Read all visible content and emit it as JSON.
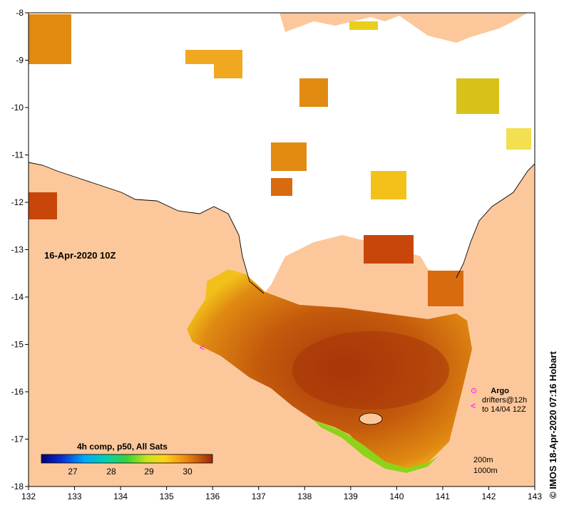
{
  "map": {
    "date_label": "16-Apr-2020 10Z",
    "x_ticks": [
      "132",
      "133",
      "134",
      "135",
      "136",
      "137",
      "138",
      "139",
      "140",
      "141",
      "142",
      "143"
    ],
    "y_ticks": [
      "-8",
      "-9",
      "-10",
      "-11",
      "-12",
      "-13",
      "-14",
      "-15",
      "-16",
      "-17",
      "-18"
    ],
    "colorbar": {
      "title": "4h comp, p50, All Sats",
      "ticks": [
        "27",
        "28",
        "29",
        "30"
      ]
    },
    "legend": {
      "argo_label": "Argo",
      "drifters_line1": "drifters@12h",
      "drifters_line2": "to 14/04 12Z",
      "argo_symbol": "⊙",
      "drifter_symbol": "<"
    },
    "contours": {
      "line1": "200m",
      "line2": "1000m"
    },
    "credit": "©  IMOS 18-Apr-2020 07:16 Hobart",
    "colors": {
      "land": "#fcc89b",
      "cloud": "#ffffff",
      "sst_warm": "#b8420a",
      "sst_mid": "#e07a10",
      "sst_cool": "#f2c21a",
      "accent": "#ff00ff"
    }
  }
}
